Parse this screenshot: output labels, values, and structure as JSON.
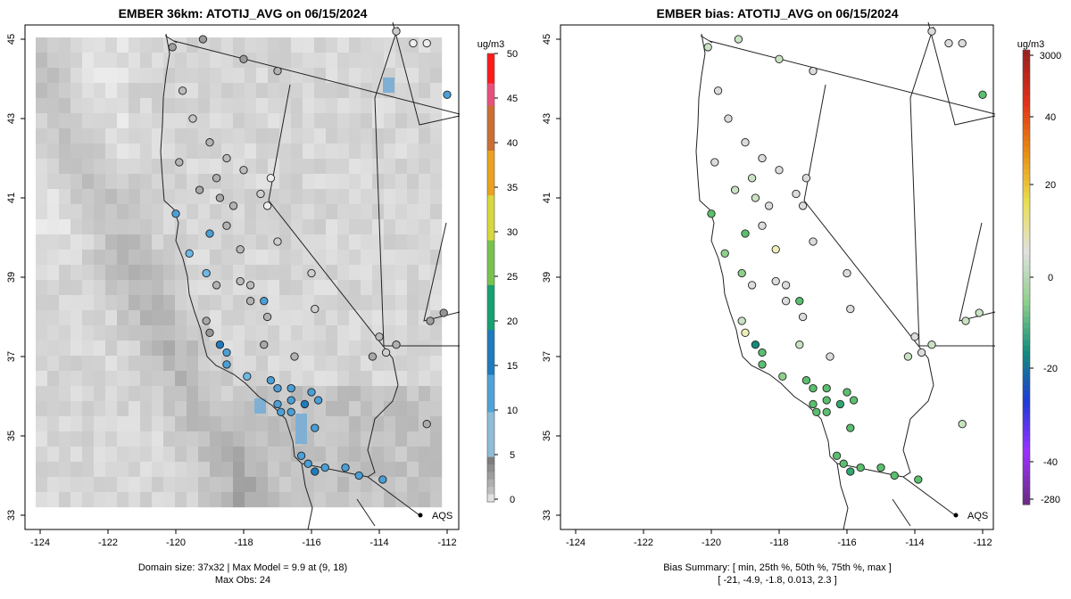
{
  "left_panel": {
    "title": "EMBER 36km: ATOTIJ_AVG on 06/15/2024",
    "x_ticks": [
      "-124",
      "-122",
      "-120",
      "-118",
      "-116",
      "-114",
      "-112"
    ],
    "y_ticks": [
      "33",
      "35",
      "37",
      "39",
      "41",
      "43",
      "45"
    ],
    "colorbar_unit": "ug/m3",
    "colorbar_ticks": [
      "0",
      "5",
      "10",
      "15",
      "20",
      "25",
      "30",
      "35",
      "40",
      "45",
      "50"
    ],
    "footer_line1": "Domain size: 37x32 | Max Model = 9.9 at (9, 18)",
    "footer_line2": "Max Obs: 24",
    "marker_label": "AQS"
  },
  "right_panel": {
    "title": "EMBER bias: ATOTIJ_AVG on 06/15/2024",
    "x_ticks": [
      "-124",
      "-122",
      "-120",
      "-118",
      "-116",
      "-114",
      "-112"
    ],
    "y_ticks": [
      "33",
      "35",
      "37",
      "39",
      "41",
      "43",
      "45"
    ],
    "colorbar_unit": "ug/m3",
    "colorbar_ticks": [
      "-280",
      "-40",
      "-20",
      "0",
      "20",
      "40",
      "3000"
    ],
    "footer_line1": "Bias Summary: [ min, 25th %, 50th %, 75th %, max ]",
    "footer_line2": "[ -21,   -4.9,   -1.8,   0.013,   2.3 ]",
    "marker_label": "AQS"
  },
  "colors": {
    "conc_scale": [
      "#e4e4e4",
      "#a0a0a0",
      "#6fb6e3",
      "#1f7bbd",
      "#17a071",
      "#79c34d",
      "#d4e04a",
      "#eda21e",
      "#d06d1a",
      "#c0a8c8",
      "#ff1a1a"
    ],
    "bias_scale": [
      "#6a2d86",
      "#9b30ff",
      "#1f3bd8",
      "#118c7c",
      "#8ed08a",
      "#e0e0e0",
      "#eadf52",
      "#e88c10",
      "#e03018",
      "#9a2020"
    ]
  },
  "chart_data": {
    "type": "map",
    "panels": [
      {
        "title": "EMBER 36km: ATOTIJ_AVG on 06/15/2024",
        "xlim": [
          -124,
          -112
        ],
        "ylim": [
          33,
          45
        ],
        "colorbar_range": [
          0,
          50
        ],
        "site_values": [
          {
            "lon": -120.1,
            "lat": 44.8,
            "v": 4.5
          },
          {
            "lon": -119.2,
            "lat": 45.0,
            "v": 4.8
          },
          {
            "lon": -118.0,
            "lat": 44.5,
            "v": 4.8
          },
          {
            "lon": -117.0,
            "lat": 44.2,
            "v": 3.5
          },
          {
            "lon": -119.8,
            "lat": 43.7,
            "v": 3.0
          },
          {
            "lon": -119.5,
            "lat": 43.0,
            "v": 2.5
          },
          {
            "lon": -119.0,
            "lat": 42.4,
            "v": 3.4
          },
          {
            "lon": -118.5,
            "lat": 42.0,
            "v": 3.0
          },
          {
            "lon": -118.0,
            "lat": 41.7,
            "v": 3.0
          },
          {
            "lon": -119.9,
            "lat": 41.9,
            "v": 3.4
          },
          {
            "lon": -118.8,
            "lat": 41.5,
            "v": 3.6
          },
          {
            "lon": -119.3,
            "lat": 41.2,
            "v": 4.0
          },
          {
            "lon": -118.7,
            "lat": 41.0,
            "v": 4.0
          },
          {
            "lon": -118.3,
            "lat": 40.8,
            "v": 3.4
          },
          {
            "lon": -117.2,
            "lat": 41.5,
            "v": 0.5
          },
          {
            "lon": -117.5,
            "lat": 41.1,
            "v": 2.0
          },
          {
            "lon": -117.3,
            "lat": 40.8,
            "v": 0.8
          },
          {
            "lon": -120.0,
            "lat": 40.6,
            "v": 14.5
          },
          {
            "lon": -119.0,
            "lat": 40.1,
            "v": 11.0
          },
          {
            "lon": -118.5,
            "lat": 40.3,
            "v": 3.4
          },
          {
            "lon": -118.1,
            "lat": 39.7,
            "v": 3.2
          },
          {
            "lon": -117.0,
            "lat": 39.9,
            "v": 2.0
          },
          {
            "lon": -119.6,
            "lat": 39.6,
            "v": 10.0
          },
          {
            "lon": -119.1,
            "lat": 39.1,
            "v": 10.0
          },
          {
            "lon": -118.8,
            "lat": 38.8,
            "v": 3.4
          },
          {
            "lon": -118.1,
            "lat": 38.9,
            "v": 3.0
          },
          {
            "lon": -117.8,
            "lat": 38.8,
            "v": 3.0
          },
          {
            "lon": -117.4,
            "lat": 38.4,
            "v": 11.0
          },
          {
            "lon": -117.8,
            "lat": 38.4,
            "v": 3.4
          },
          {
            "lon": -116.0,
            "lat": 39.1,
            "v": 2.0
          },
          {
            "lon": -115.9,
            "lat": 38.2,
            "v": 2.0
          },
          {
            "lon": -117.3,
            "lat": 38.0,
            "v": 3.4
          },
          {
            "lon": -119.1,
            "lat": 37.9,
            "v": 4.0
          },
          {
            "lon": -119.0,
            "lat": 37.6,
            "v": 5.0
          },
          {
            "lon": -118.7,
            "lat": 37.3,
            "v": 17.0
          },
          {
            "lon": -118.5,
            "lat": 37.1,
            "v": 11.0
          },
          {
            "lon": -117.4,
            "lat": 37.3,
            "v": 4.0
          },
          {
            "lon": -116.5,
            "lat": 37.0,
            "v": 3.5
          },
          {
            "lon": -118.5,
            "lat": 36.8,
            "v": 13.0
          },
          {
            "lon": -117.9,
            "lat": 36.5,
            "v": 10.0
          },
          {
            "lon": -117.2,
            "lat": 36.4,
            "v": 12.0
          },
          {
            "lon": -116.6,
            "lat": 36.2,
            "v": 14.0
          },
          {
            "lon": -117.0,
            "lat": 36.2,
            "v": 11.0
          },
          {
            "lon": -116.0,
            "lat": 36.1,
            "v": 11.0
          },
          {
            "lon": -116.6,
            "lat": 35.9,
            "v": 14.0
          },
          {
            "lon": -117.0,
            "lat": 35.8,
            "v": 13.0
          },
          {
            "lon": -116.2,
            "lat": 35.8,
            "v": 15.0
          },
          {
            "lon": -115.8,
            "lat": 35.9,
            "v": 12.0
          },
          {
            "lon": -116.9,
            "lat": 35.6,
            "v": 14.0
          },
          {
            "lon": -116.6,
            "lat": 35.6,
            "v": 13.0
          },
          {
            "lon": -115.9,
            "lat": 35.2,
            "v": 11.0
          },
          {
            "lon": -116.3,
            "lat": 34.5,
            "v": 12.0
          },
          {
            "lon": -116.1,
            "lat": 34.3,
            "v": 14.0
          },
          {
            "lon": -115.9,
            "lat": 34.1,
            "v": 15.0
          },
          {
            "lon": -115.6,
            "lat": 34.2,
            "v": 12.0
          },
          {
            "lon": -115.0,
            "lat": 34.2,
            "v": 12.0
          },
          {
            "lon": -114.6,
            "lat": 34.0,
            "v": 14.0
          },
          {
            "lon": -113.9,
            "lat": 33.9,
            "v": 11.0
          },
          {
            "lon": -114.0,
            "lat": 37.5,
            "v": 3.0
          },
          {
            "lon": -113.5,
            "lat": 37.3,
            "v": 3.6
          },
          {
            "lon": -114.2,
            "lat": 37.0,
            "v": 4.0
          },
          {
            "lon": -113.8,
            "lat": 37.1,
            "v": 2.0
          },
          {
            "lon": -112.5,
            "lat": 37.9,
            "v": 4.5
          },
          {
            "lon": -112.1,
            "lat": 38.1,
            "v": 5.0
          },
          {
            "lon": -112.6,
            "lat": 35.3,
            "v": 3.8
          },
          {
            "lon": -112.0,
            "lat": 43.6,
            "v": 12.0
          },
          {
            "lon": -113.0,
            "lat": 44.9,
            "v": 0.5
          },
          {
            "lon": -112.6,
            "lat": 44.9,
            "v": 0.5
          },
          {
            "lon": -113.5,
            "lat": 45.2,
            "v": 2.0
          }
        ]
      },
      {
        "title": "EMBER bias: ATOTIJ_AVG on 06/15/2024",
        "xlim": [
          -124,
          -112
        ],
        "ylim": [
          33,
          45
        ],
        "colorbar_range": [
          -280,
          3000
        ],
        "bias_summary": {
          "min": -21,
          "p25": -4.9,
          "p50": -1.8,
          "p75": 0.013,
          "max": 2.3
        }
      }
    ]
  }
}
